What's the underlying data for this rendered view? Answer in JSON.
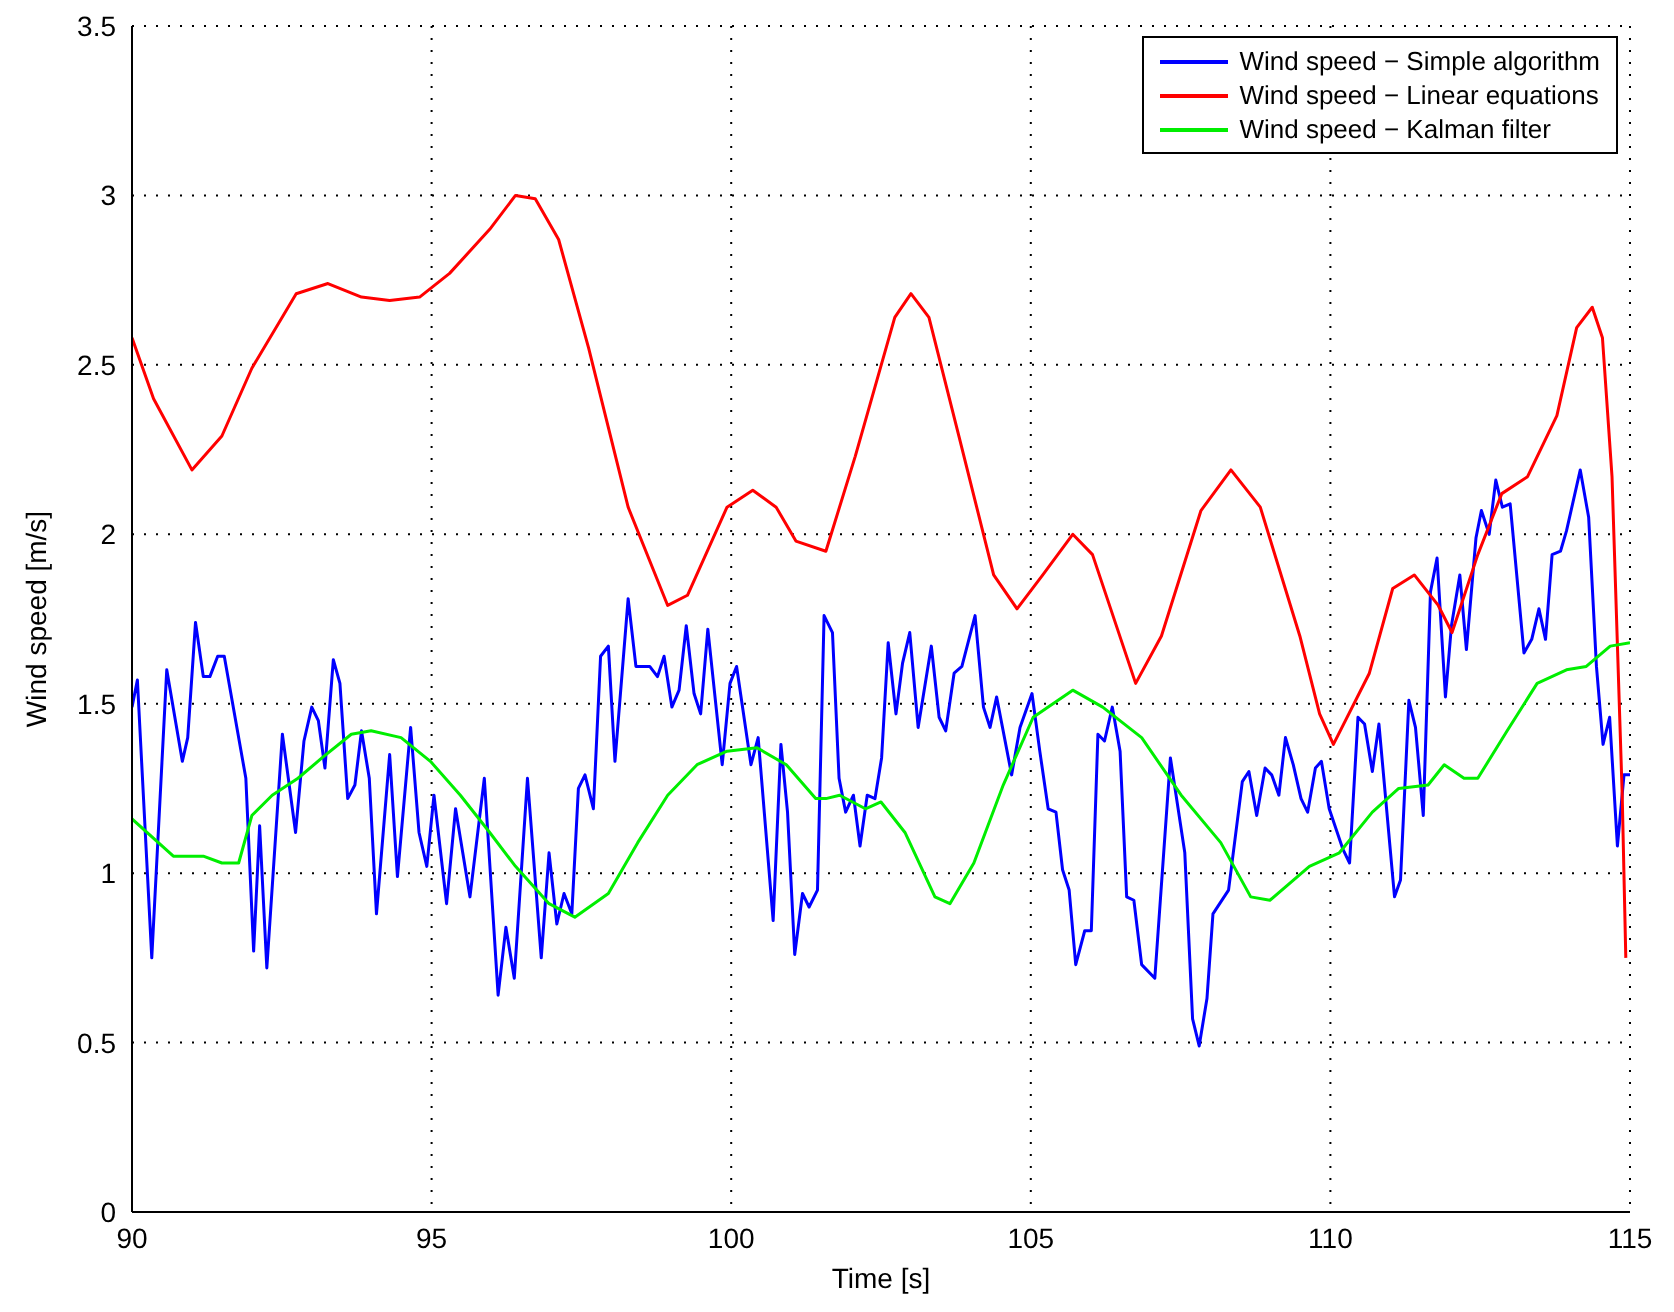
{
  "chart_data": {
    "type": "line",
    "xlabel": "Time [s]",
    "ylabel": "Wind speed [m/s]",
    "xlim": [
      90,
      115
    ],
    "xticks": [
      90,
      95,
      100,
      105,
      110,
      115
    ],
    "ylim": [
      0,
      3.5
    ],
    "yticks": [
      0,
      0.5,
      1,
      1.5,
      2,
      2.5,
      3,
      3.5
    ],
    "grid": true,
    "legend": "top right",
    "marker": "none",
    "line_style": "solid",
    "series": [
      {
        "name": "Wind speed − Simple algorithm",
        "color": "#0000ff",
        "x": [
          90,
          90.09,
          90.33,
          90.58,
          90.84,
          90.93,
          91.06,
          91.19,
          91.3,
          91.43,
          91.54,
          91.9,
          92.03,
          92.13,
          92.25,
          92.51,
          92.73,
          92.87,
          93,
          93.11,
          93.22,
          93.36,
          93.47,
          93.6,
          93.72,
          93.83,
          93.96,
          94.08,
          94.3,
          94.43,
          94.65,
          94.79,
          94.92,
          95.04,
          95.25,
          95.4,
          95.64,
          95.88,
          96.11,
          96.24,
          96.38,
          96.6,
          96.83,
          96.96,
          97.09,
          97.21,
          97.34,
          97.45,
          97.56,
          97.7,
          97.82,
          97.95,
          98.06,
          98.28,
          98.41,
          98.64,
          98.77,
          98.88,
          99.01,
          99.13,
          99.25,
          99.38,
          99.49,
          99.61,
          99.85,
          99.98,
          100.09,
          100.33,
          100.45,
          100.7,
          100.83,
          100.94,
          101.06,
          101.19,
          101.3,
          101.44,
          101.55,
          101.69,
          101.8,
          101.91,
          102.04,
          102.15,
          102.27,
          102.4,
          102.51,
          102.62,
          102.75,
          102.86,
          102.98,
          103.12,
          103.34,
          103.47,
          103.58,
          103.72,
          103.85,
          104.07,
          104.21,
          104.32,
          104.43,
          104.68,
          104.82,
          105.02,
          105.15,
          105.29,
          105.42,
          105.53,
          105.64,
          105.75,
          105.9,
          106.01,
          106.12,
          106.23,
          106.36,
          106.49,
          106.6,
          106.72,
          106.85,
          107.07,
          107.33,
          107.57,
          107.7,
          107.81,
          107.94,
          108.04,
          108.3,
          108.53,
          108.64,
          108.77,
          108.91,
          109.02,
          109.14,
          109.25,
          109.38,
          109.51,
          109.62,
          109.75,
          109.85,
          109.98,
          110.21,
          110.32,
          110.46,
          110.57,
          110.7,
          110.81,
          111.07,
          111.17,
          111.31,
          111.42,
          111.55,
          111.67,
          111.78,
          111.92,
          112.02,
          112.16,
          112.27,
          112.43,
          112.52,
          112.65,
          112.76,
          112.87,
          113,
          113.23,
          113.36,
          113.48,
          113.59,
          113.7,
          113.84,
          113.94,
          114.17,
          114.31,
          114.44,
          114.55,
          114.66,
          114.79,
          114.9,
          115
        ],
        "values": [
          1.49,
          1.57,
          0.75,
          1.6,
          1.33,
          1.4,
          1.74,
          1.58,
          1.58,
          1.64,
          1.64,
          1.28,
          0.77,
          1.14,
          0.72,
          1.41,
          1.12,
          1.39,
          1.49,
          1.45,
          1.31,
          1.63,
          1.56,
          1.22,
          1.26,
          1.42,
          1.28,
          0.88,
          1.35,
          0.99,
          1.43,
          1.12,
          1.02,
          1.23,
          0.91,
          1.19,
          0.93,
          1.28,
          0.64,
          0.84,
          0.69,
          1.28,
          0.75,
          1.06,
          0.85,
          0.94,
          0.88,
          1.25,
          1.29,
          1.19,
          1.64,
          1.67,
          1.33,
          1.81,
          1.61,
          1.61,
          1.58,
          1.64,
          1.49,
          1.54,
          1.73,
          1.53,
          1.47,
          1.72,
          1.32,
          1.56,
          1.61,
          1.32,
          1.4,
          0.86,
          1.38,
          1.18,
          0.76,
          0.94,
          0.9,
          0.95,
          1.76,
          1.71,
          1.28,
          1.18,
          1.23,
          1.08,
          1.23,
          1.22,
          1.34,
          1.68,
          1.47,
          1.62,
          1.71,
          1.43,
          1.67,
          1.46,
          1.42,
          1.59,
          1.61,
          1.76,
          1.49,
          1.43,
          1.52,
          1.29,
          1.43,
          1.53,
          1.36,
          1.19,
          1.18,
          1.01,
          0.95,
          0.73,
          0.83,
          0.83,
          1.41,
          1.39,
          1.49,
          1.36,
          0.93,
          0.92,
          0.73,
          0.69,
          1.34,
          1.06,
          0.57,
          0.49,
          0.63,
          0.88,
          0.95,
          1.27,
          1.3,
          1.17,
          1.31,
          1.29,
          1.23,
          1.4,
          1.32,
          1.22,
          1.18,
          1.31,
          1.33,
          1.19,
          1.07,
          1.03,
          1.46,
          1.44,
          1.3,
          1.44,
          0.93,
          0.98,
          1.51,
          1.43,
          1.17,
          1.83,
          1.93,
          1.52,
          1.73,
          1.88,
          1.66,
          1.99,
          2.07,
          2,
          2.16,
          2.08,
          2.09,
          1.65,
          1.69,
          1.78,
          1.69,
          1.94,
          1.95,
          2.01,
          2.19,
          2.05,
          1.61,
          1.38,
          1.46,
          1.08,
          1.29,
          1.29
        ]
      },
      {
        "name": "Wind speed − Linear equations",
        "color": "#ff0000",
        "x": [
          90,
          90.36,
          91,
          91.5,
          92,
          92.74,
          93.27,
          93.83,
          94.3,
          94.8,
          95.3,
          95.97,
          96.4,
          96.73,
          97.12,
          97.62,
          98.28,
          98.94,
          99.27,
          99.93,
          100.36,
          100.75,
          101.08,
          101.58,
          102.07,
          102.73,
          103,
          103.3,
          103.8,
          104.38,
          104.77,
          105.2,
          105.7,
          106.03,
          106.75,
          107.18,
          107.84,
          108.34,
          108.83,
          109.49,
          109.82,
          110.05,
          110.65,
          111.04,
          111.4,
          111.8,
          112.03,
          112.46,
          112.86,
          113.29,
          113.78,
          114.11,
          114.37,
          114.54,
          114.7,
          114.87,
          114.93
        ],
        "values": [
          2.58,
          2.4,
          2.19,
          2.29,
          2.49,
          2.71,
          2.74,
          2.7,
          2.69,
          2.7,
          2.77,
          2.9,
          3,
          2.99,
          2.87,
          2.55,
          2.08,
          1.79,
          1.82,
          2.08,
          2.13,
          2.08,
          1.98,
          1.95,
          2.23,
          2.64,
          2.71,
          2.64,
          2.29,
          1.88,
          1.78,
          1.88,
          2,
          1.94,
          1.56,
          1.7,
          2.07,
          2.19,
          2.08,
          1.7,
          1.47,
          1.38,
          1.59,
          1.84,
          1.88,
          1.79,
          1.71,
          1.94,
          2.12,
          2.17,
          2.35,
          2.61,
          2.67,
          2.58,
          2.17,
          1.23,
          0.75
        ]
      },
      {
        "name": "Wind speed − Kalman filter",
        "color": "#00ee00",
        "x": [
          90,
          90.69,
          91.19,
          91.5,
          91.78,
          92,
          92.34,
          92.77,
          93.17,
          93.66,
          93.99,
          94.49,
          94.98,
          95.48,
          95.97,
          96.4,
          96.96,
          97.39,
          97.95,
          98.44,
          98.94,
          99.43,
          99.93,
          100.43,
          100.92,
          101.41,
          101.58,
          101.81,
          102.24,
          102.5,
          102.9,
          103.4,
          103.65,
          104.05,
          104.54,
          105.04,
          105.7,
          106.2,
          106.85,
          107.51,
          108.17,
          108.67,
          108.99,
          109.65,
          110.15,
          110.7,
          111.14,
          111.63,
          111.9,
          112.23,
          112.46,
          112.95,
          113.45,
          113.94,
          114.27,
          114.67,
          115
        ],
        "values": [
          1.16,
          1.05,
          1.05,
          1.03,
          1.03,
          1.17,
          1.23,
          1.28,
          1.34,
          1.41,
          1.42,
          1.4,
          1.33,
          1.23,
          1.12,
          1.02,
          0.91,
          0.87,
          0.94,
          1.09,
          1.23,
          1.32,
          1.36,
          1.37,
          1.32,
          1.22,
          1.22,
          1.23,
          1.19,
          1.21,
          1.12,
          0.93,
          0.91,
          1.03,
          1.26,
          1.46,
          1.54,
          1.49,
          1.4,
          1.23,
          1.09,
          0.93,
          0.92,
          1.02,
          1.06,
          1.18,
          1.25,
          1.26,
          1.32,
          1.28,
          1.28,
          1.42,
          1.56,
          1.6,
          1.61,
          1.67,
          1.68
        ]
      }
    ]
  }
}
